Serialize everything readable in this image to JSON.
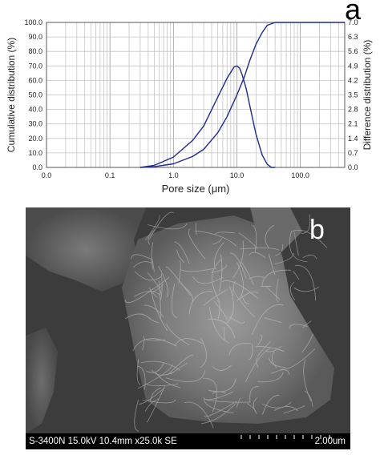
{
  "panel_a_label": "a",
  "panel_b_label": "b",
  "chart_data": {
    "type": "line",
    "xlabel": "Pore size (μm)",
    "ylabel_left": "Cumulative distribution (%)",
    "ylabel_right": "Difference distribution (%)",
    "x_scale": "log",
    "xlim": [
      0.01,
      500
    ],
    "x_tick_values": [
      0.01,
      0.1,
      1,
      10,
      100
    ],
    "x_tick_labels": [
      "0.0",
      "0.1",
      "1.0",
      "10.0",
      "100.0"
    ],
    "ylim_left": [
      0,
      100
    ],
    "y_left_ticks": [
      "0.0",
      "10.0",
      "20.0",
      "30.0",
      "40.0",
      "50.0",
      "60.0",
      "70.0",
      "80.0",
      "90.0",
      "100.0"
    ],
    "ylim_right": [
      0,
      7.0
    ],
    "y_right_ticks": [
      "0.0",
      "0.7",
      "1.4",
      "2.1",
      "2.8",
      "3.5",
      "4.2",
      "4.9",
      "5.6",
      "6.3",
      "7.0"
    ],
    "grid": true,
    "line_color": "#1f2a8f",
    "series": [
      {
        "axis": "left",
        "x": [
          0.3,
          0.5,
          1.0,
          2.0,
          3.0,
          5.0,
          7.0,
          10.0,
          13.0,
          16.0,
          20.0,
          25.0,
          30.0,
          40.0,
          60.0,
          100.0,
          200.0,
          500.0
        ],
        "values": [
          0,
          0.5,
          2.5,
          7.5,
          12.5,
          24,
          35,
          50,
          62,
          74,
          85,
          93,
          98,
          100,
          100,
          100,
          100,
          100
        ]
      },
      {
        "axis": "right",
        "x": [
          0.3,
          0.5,
          1.0,
          2.0,
          3.0,
          5.0,
          7.0,
          9.0,
          10.0,
          11.0,
          12.0,
          14.0,
          17.0,
          20.0,
          25.0,
          30.0,
          35.0,
          40.0
        ],
        "values": [
          0,
          0.1,
          0.5,
          1.3,
          2.0,
          3.4,
          4.3,
          4.85,
          4.9,
          4.8,
          4.5,
          3.8,
          2.6,
          1.6,
          0.6,
          0.15,
          0,
          0
        ]
      }
    ]
  },
  "sem_image": {
    "info_text": "S-3400N 15.0kV 10.4mm x25.0k SE",
    "scale_label": "2.00um"
  }
}
